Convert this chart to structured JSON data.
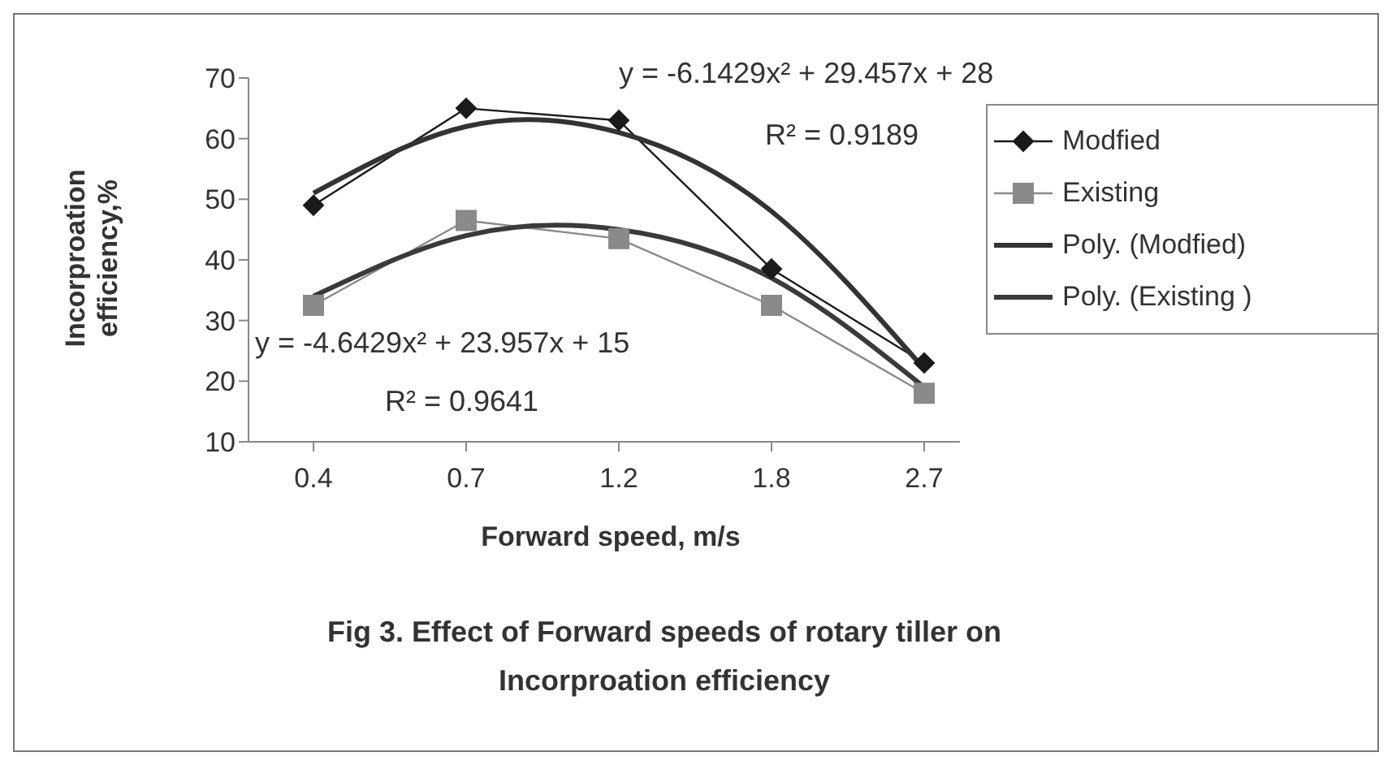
{
  "chart_data": {
    "type": "line",
    "xlabel": "Forward speed, m/s",
    "ylabel": "Incorproation efficiency,%",
    "categories": [
      "0.4",
      "0.7",
      "1.2",
      "1.8",
      "2.7"
    ],
    "ylim": [
      10,
      70
    ],
    "yticks": [
      10,
      20,
      30,
      40,
      50,
      60,
      70
    ],
    "grid": false,
    "legend": "right",
    "series": [
      {
        "name": "Modfied",
        "color": "#1a1a1a",
        "marker": "diamond",
        "values": [
          49,
          65,
          63,
          38.5,
          23
        ]
      },
      {
        "name": "Existing",
        "color": "#8a8a8a",
        "marker": "square",
        "values": [
          32.5,
          46.5,
          43.5,
          32.5,
          18
        ]
      },
      {
        "name": "Poly. (Modfied)",
        "color": "#333333",
        "marker": "none",
        "values": [
          51,
          62,
          61,
          48,
          22
        ]
      },
      {
        "name": "Poly. (Existing )",
        "color": "#3a3a3a",
        "marker": "none",
        "values": [
          34,
          44,
          45,
          37,
          19
        ]
      }
    ],
    "annotations": [
      "y = -6.1429x² + 29.457x + 28",
      "R² = 0.9189",
      "y = -4.6429x² + 23.957x + 15",
      "R² = 0.9641",
      "Fig 3. Effect of Forward speeds of rotary tiller on Incorproation efficiency"
    ]
  }
}
